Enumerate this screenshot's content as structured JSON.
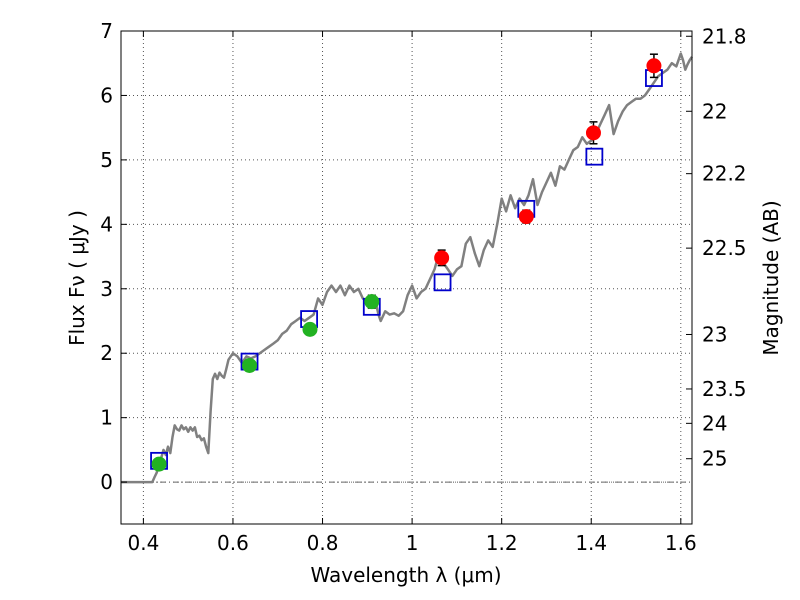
{
  "chart_data": {
    "type": "scatter",
    "title": "",
    "xlabel": "Wavelength  λ (μm)",
    "ylabel": "Flux  Fν  ( μJy )",
    "ylabel_right": "Magnitude (AB)",
    "xlim": [
      0.35,
      1.625
    ],
    "ylim": [
      -0.65,
      7
    ],
    "grid": true,
    "x_ticks": [
      0.4,
      0.6,
      0.8,
      1.0,
      1.2,
      1.4,
      1.6
    ],
    "x_tick_labels": [
      "0.4",
      "0.6",
      "0.8",
      "1",
      "1.2",
      "1.4",
      "1.6"
    ],
    "y_ticks": [
      0,
      1,
      2,
      3,
      4,
      5,
      6,
      7
    ],
    "y_tick_labels": [
      "0",
      "1",
      "2",
      "3",
      "4",
      "5",
      "6",
      "7"
    ],
    "right_axis_ticks": [
      {
        "label": "21.8",
        "mag": 21.8
      },
      {
        "label": "22",
        "mag": 22
      },
      {
        "label": "22.2",
        "mag": 22.2
      },
      {
        "label": "22.5",
        "mag": 22.5
      },
      {
        "label": "23",
        "mag": 23
      },
      {
        "label": "23.5",
        "mag": 23.5
      },
      {
        "label": "24",
        "mag": 24
      },
      {
        "label": "25",
        "mag": 25
      }
    ],
    "colors": {
      "spectrum": "#808080",
      "green": "#22b222",
      "red": "#ff0000",
      "model_box": "#0000cc",
      "errorbar": "#000000",
      "grid": "#555555"
    },
    "series": [
      {
        "kind": "spectrum",
        "points": [
          [
            0.35,
            0.0
          ],
          [
            0.42,
            0.0
          ],
          [
            0.425,
            0.08
          ],
          [
            0.43,
            0.15
          ],
          [
            0.435,
            0.3
          ],
          [
            0.44,
            0.38
          ],
          [
            0.445,
            0.5
          ],
          [
            0.45,
            0.42
          ],
          [
            0.455,
            0.55
          ],
          [
            0.46,
            0.45
          ],
          [
            0.465,
            0.7
          ],
          [
            0.47,
            0.88
          ],
          [
            0.475,
            0.82
          ],
          [
            0.48,
            0.8
          ],
          [
            0.485,
            0.88
          ],
          [
            0.49,
            0.82
          ],
          [
            0.495,
            0.85
          ],
          [
            0.5,
            0.78
          ],
          [
            0.505,
            0.85
          ],
          [
            0.51,
            0.8
          ],
          [
            0.515,
            0.85
          ],
          [
            0.52,
            0.7
          ],
          [
            0.525,
            0.72
          ],
          [
            0.53,
            0.65
          ],
          [
            0.535,
            0.68
          ],
          [
            0.54,
            0.55
          ],
          [
            0.545,
            0.45
          ],
          [
            0.55,
            1.1
          ],
          [
            0.555,
            1.6
          ],
          [
            0.56,
            1.68
          ],
          [
            0.565,
            1.6
          ],
          [
            0.57,
            1.7
          ],
          [
            0.575,
            1.65
          ],
          [
            0.58,
            1.62
          ],
          [
            0.585,
            1.75
          ],
          [
            0.59,
            1.9
          ],
          [
            0.6,
            2.0
          ],
          [
            0.61,
            1.95
          ],
          [
            0.62,
            1.85
          ],
          [
            0.63,
            1.95
          ],
          [
            0.64,
            1.92
          ],
          [
            0.65,
            1.95
          ],
          [
            0.66,
            2.0
          ],
          [
            0.67,
            2.05
          ],
          [
            0.68,
            2.1
          ],
          [
            0.69,
            2.15
          ],
          [
            0.7,
            2.2
          ],
          [
            0.71,
            2.3
          ],
          [
            0.72,
            2.35
          ],
          [
            0.73,
            2.45
          ],
          [
            0.74,
            2.5
          ],
          [
            0.75,
            2.55
          ],
          [
            0.76,
            2.5
          ],
          [
            0.77,
            2.55
          ],
          [
            0.78,
            2.6
          ],
          [
            0.79,
            2.85
          ],
          [
            0.8,
            2.75
          ],
          [
            0.81,
            2.95
          ],
          [
            0.82,
            3.05
          ],
          [
            0.83,
            2.95
          ],
          [
            0.84,
            3.05
          ],
          [
            0.85,
            2.9
          ],
          [
            0.86,
            3.05
          ],
          [
            0.87,
            2.95
          ],
          [
            0.88,
            3.0
          ],
          [
            0.89,
            2.85
          ],
          [
            0.9,
            2.8
          ],
          [
            0.91,
            2.9
          ],
          [
            0.92,
            2.75
          ],
          [
            0.925,
            2.6
          ],
          [
            0.93,
            2.5
          ],
          [
            0.94,
            2.65
          ],
          [
            0.95,
            2.6
          ],
          [
            0.96,
            2.62
          ],
          [
            0.97,
            2.58
          ],
          [
            0.98,
            2.65
          ],
          [
            0.99,
            2.9
          ],
          [
            1.0,
            3.05
          ],
          [
            1.01,
            2.85
          ],
          [
            1.02,
            2.95
          ],
          [
            1.03,
            3.0
          ],
          [
            1.04,
            3.15
          ],
          [
            1.05,
            3.3
          ],
          [
            1.06,
            3.55
          ],
          [
            1.07,
            3.4
          ],
          [
            1.08,
            3.3
          ],
          [
            1.09,
            3.2
          ],
          [
            1.1,
            3.3
          ],
          [
            1.11,
            3.35
          ],
          [
            1.12,
            3.7
          ],
          [
            1.13,
            3.8
          ],
          [
            1.14,
            3.55
          ],
          [
            1.15,
            3.35
          ],
          [
            1.16,
            3.6
          ],
          [
            1.17,
            3.75
          ],
          [
            1.18,
            3.65
          ],
          [
            1.19,
            4.0
          ],
          [
            1.2,
            4.4
          ],
          [
            1.21,
            4.2
          ],
          [
            1.22,
            4.45
          ],
          [
            1.23,
            4.25
          ],
          [
            1.24,
            4.4
          ],
          [
            1.25,
            4.3
          ],
          [
            1.26,
            4.45
          ],
          [
            1.27,
            4.7
          ],
          [
            1.28,
            4.3
          ],
          [
            1.29,
            4.5
          ],
          [
            1.3,
            4.65
          ],
          [
            1.31,
            4.8
          ],
          [
            1.32,
            4.6
          ],
          [
            1.33,
            4.9
          ],
          [
            1.34,
            4.85
          ],
          [
            1.35,
            5.0
          ],
          [
            1.36,
            5.15
          ],
          [
            1.37,
            5.2
          ],
          [
            1.38,
            5.35
          ],
          [
            1.39,
            5.25
          ],
          [
            1.4,
            5.3
          ],
          [
            1.41,
            5.4
          ],
          [
            1.42,
            5.55
          ],
          [
            1.43,
            5.7
          ],
          [
            1.44,
            5.85
          ],
          [
            1.45,
            5.4
          ],
          [
            1.46,
            5.6
          ],
          [
            1.47,
            5.75
          ],
          [
            1.48,
            5.85
          ],
          [
            1.49,
            5.9
          ],
          [
            1.5,
            5.95
          ],
          [
            1.51,
            5.95
          ],
          [
            1.52,
            6.0
          ],
          [
            1.53,
            6.1
          ],
          [
            1.54,
            6.2
          ],
          [
            1.55,
            6.3
          ],
          [
            1.56,
            6.35
          ],
          [
            1.57,
            6.4
          ],
          [
            1.58,
            6.5
          ],
          [
            1.59,
            6.45
          ],
          [
            1.6,
            6.65
          ],
          [
            1.605,
            6.55
          ],
          [
            1.61,
            6.4
          ],
          [
            1.615,
            6.48
          ],
          [
            1.62,
            6.55
          ],
          [
            1.625,
            6.6
          ]
        ]
      },
      {
        "kind": "observed-green",
        "points": [
          {
            "x": 0.435,
            "y": 0.28,
            "err": 0.08
          },
          {
            "x": 0.637,
            "y": 1.81,
            "err": 0.07
          },
          {
            "x": 0.772,
            "y": 2.37,
            "err": 0.08
          },
          {
            "x": 0.91,
            "y": 2.8,
            "err": 0.1
          }
        ]
      },
      {
        "kind": "observed-red",
        "points": [
          {
            "x": 1.066,
            "y": 3.48,
            "err": 0.12
          },
          {
            "x": 1.255,
            "y": 4.12,
            "err": 0.1
          },
          {
            "x": 1.405,
            "y": 5.42,
            "err": 0.17
          },
          {
            "x": 1.54,
            "y": 6.46,
            "err": 0.18
          }
        ]
      },
      {
        "kind": "model-boxes",
        "points": [
          {
            "x": 0.435,
            "y": 0.33
          },
          {
            "x": 0.637,
            "y": 1.87
          },
          {
            "x": 0.77,
            "y": 2.53
          },
          {
            "x": 0.91,
            "y": 2.72
          },
          {
            "x": 1.068,
            "y": 3.1
          },
          {
            "x": 1.255,
            "y": 4.24
          },
          {
            "x": 1.407,
            "y": 5.05
          },
          {
            "x": 1.54,
            "y": 6.27
          }
        ]
      }
    ]
  }
}
